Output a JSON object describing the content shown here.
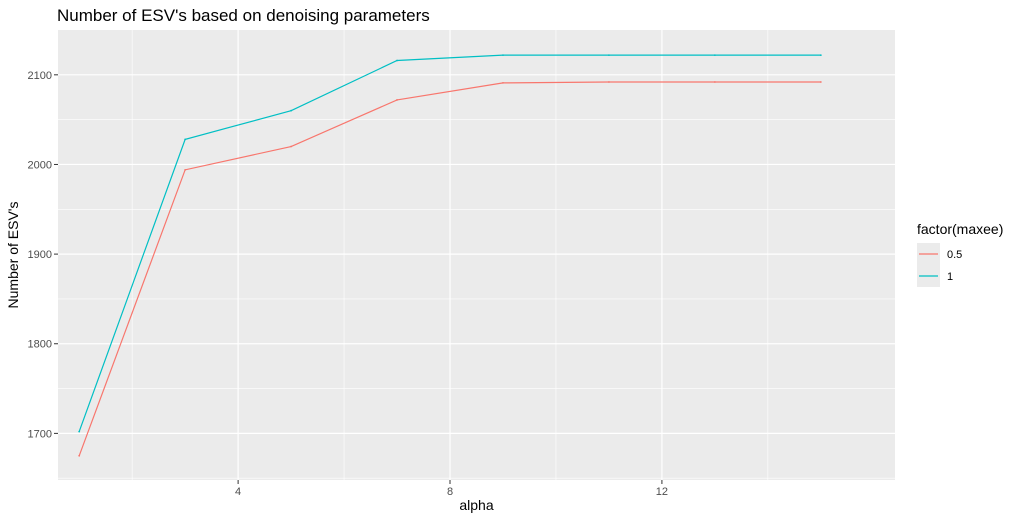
{
  "chart_data": {
    "type": "line",
    "title": "Number of ESV's based on denoising parameters",
    "xlabel": "alpha",
    "ylabel": "Number of ESV's",
    "xlim": [
      0.6,
      16.4
    ],
    "ylim": [
      1648,
      2150
    ],
    "x_ticks": [
      4,
      8,
      12
    ],
    "x_tick_labels": [
      "4",
      "8",
      "12"
    ],
    "x_minor_ticks": [
      2,
      6,
      10,
      14
    ],
    "y_ticks": [
      1700,
      1800,
      1900,
      2000,
      2100
    ],
    "y_tick_labels": [
      "1700",
      "1800",
      "1900",
      "2000",
      "2100"
    ],
    "y_minor_ticks": [
      1650,
      1750,
      1850,
      1950,
      2050
    ],
    "grid": true,
    "legend": {
      "title": "factor(maxee)",
      "placement": "right"
    },
    "series": [
      {
        "name": "0.5",
        "color": "#f8766d",
        "x": [
          1,
          3,
          5,
          7,
          9,
          11,
          13,
          15
        ],
        "y": [
          1675,
          1994,
          2020,
          2072,
          2091,
          2092,
          2092,
          2092
        ]
      },
      {
        "name": "1",
        "color": "#00bfc4",
        "x": [
          1,
          3,
          5,
          7,
          9,
          11,
          13,
          15
        ],
        "y": [
          1702,
          2028,
          2060,
          2116,
          2122,
          2122,
          2122,
          2122
        ]
      }
    ]
  }
}
